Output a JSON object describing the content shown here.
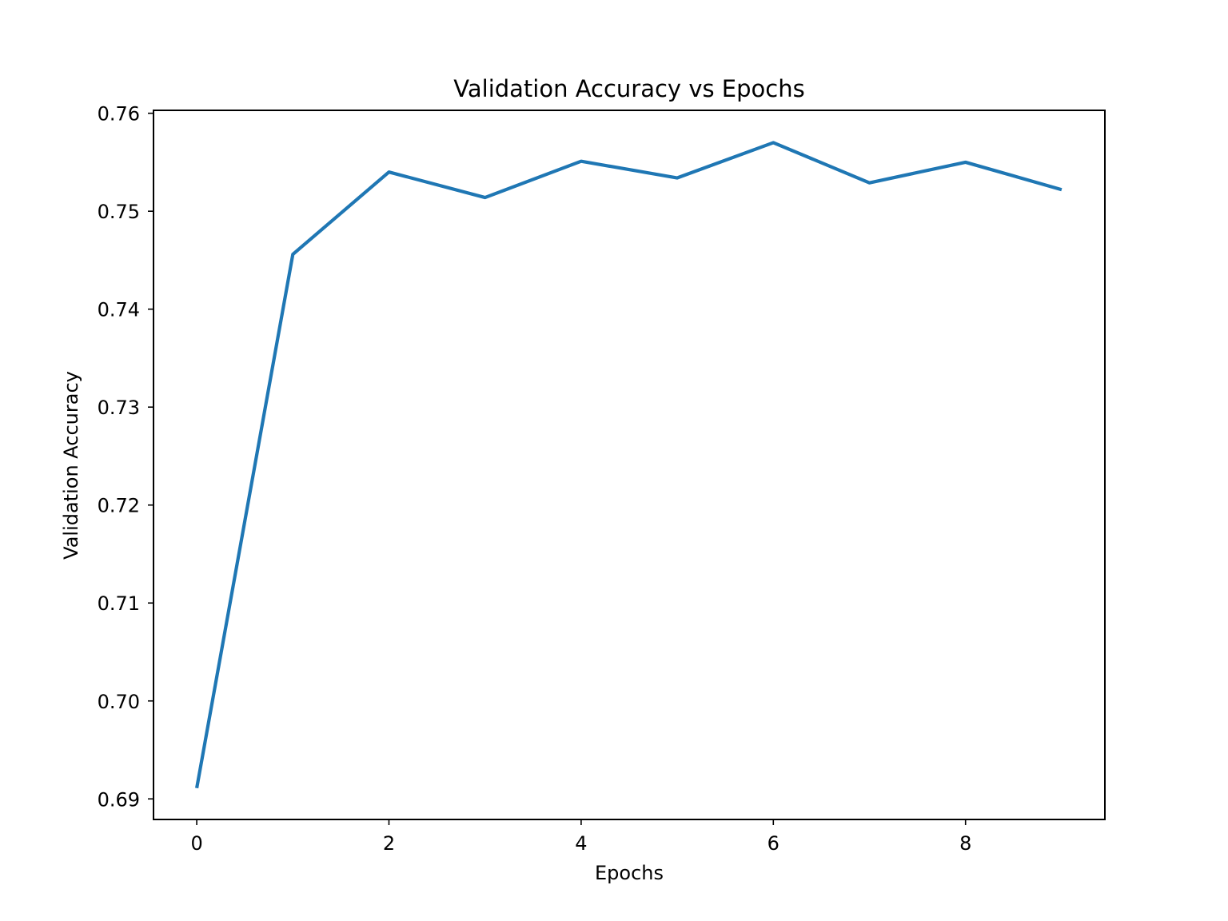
{
  "chart_data": {
    "type": "line",
    "title": "Validation Accuracy vs Epochs",
    "xlabel": "Epochs",
    "ylabel": "Validation Accuracy",
    "x": [
      0,
      1,
      2,
      3,
      4,
      5,
      6,
      7,
      8,
      9
    ],
    "series": [
      {
        "values": [
          0.6911,
          0.7456,
          0.754,
          0.7514,
          0.7551,
          0.7534,
          0.757,
          0.7529,
          0.755,
          0.7522
        ],
        "color": "#1f77b4"
      }
    ],
    "xlim": [
      -0.45,
      9.45
    ],
    "ylim": [
      0.6879,
      0.7603
    ],
    "xticks": [
      0,
      2,
      4,
      6,
      8
    ],
    "xtick_labels": [
      "0",
      "2",
      "4",
      "6",
      "8"
    ],
    "yticks": [
      0.69,
      0.7,
      0.71,
      0.72,
      0.73,
      0.74,
      0.75,
      0.76
    ],
    "ytick_labels": [
      "0.69",
      "0.70",
      "0.71",
      "0.72",
      "0.73",
      "0.74",
      "0.75",
      "0.76"
    ],
    "grid": false,
    "legend": "none"
  }
}
